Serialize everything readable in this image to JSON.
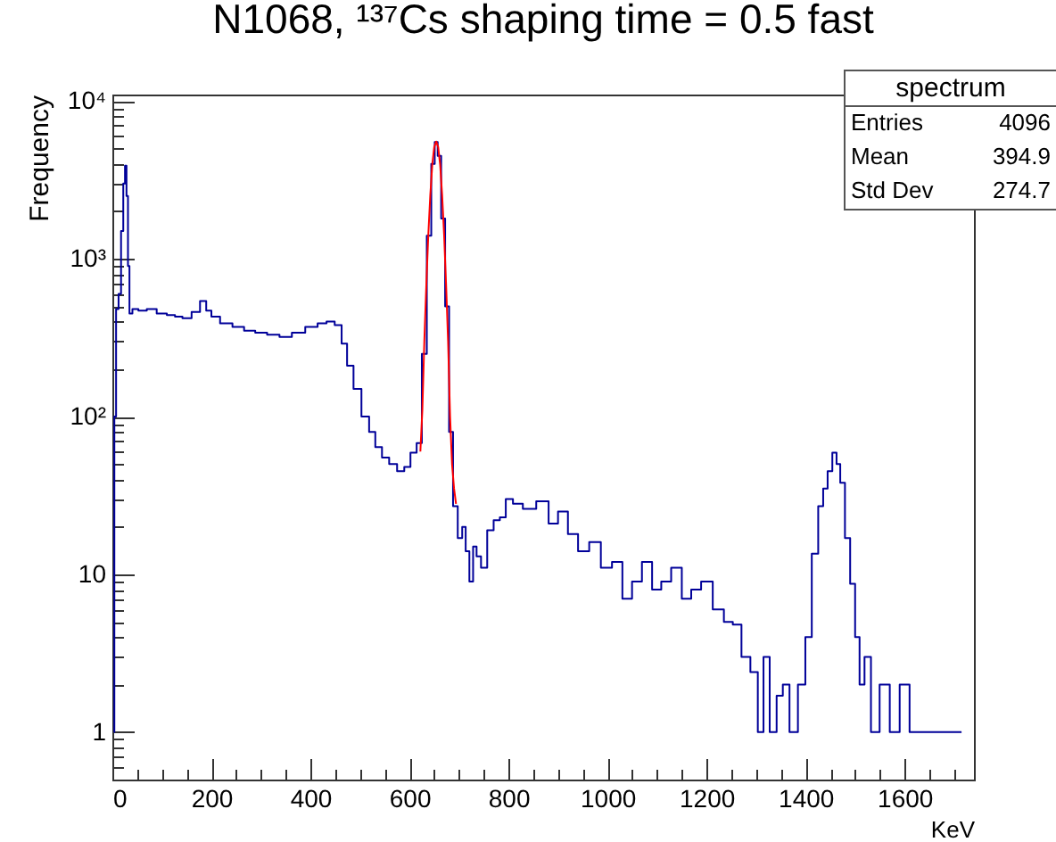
{
  "chart_data": {
    "type": "step",
    "title": "N1068, ¹³⁷Cs shaping time = 0.5 fast",
    "xlabel": "KeV",
    "ylabel": "Frequency",
    "log": "y",
    "grid": false,
    "xlim": [
      0,
      1740
    ],
    "ylim": [
      0.5,
      11000
    ],
    "xticks": [
      0,
      {
        "value": 50,
        "label": null
      },
      {
        "value": 100,
        "label": null
      },
      {
        "value": 150,
        "label": null
      },
      200,
      {
        "value": 250,
        "label": null
      },
      {
        "value": 300,
        "label": null
      },
      {
        "value": 350,
        "label": null
      },
      400,
      {
        "value": 450,
        "label": null
      },
      {
        "value": 500,
        "label": null
      },
      {
        "value": 550,
        "label": null
      },
      600,
      {
        "value": 650,
        "label": null
      },
      {
        "value": 700,
        "label": null
      },
      {
        "value": 750,
        "label": null
      },
      800,
      {
        "value": 850,
        "label": null
      },
      {
        "value": 900,
        "label": null
      },
      {
        "value": 950,
        "label": null
      },
      1000,
      {
        "value": 1050,
        "label": null
      },
      {
        "value": 1100,
        "label": null
      },
      {
        "value": 1150,
        "label": null
      },
      1200,
      {
        "value": 1250,
        "label": null
      },
      {
        "value": 1300,
        "label": null
      },
      {
        "value": 1350,
        "label": null
      },
      1400,
      {
        "value": 1450,
        "label": null
      },
      {
        "value": 1500,
        "label": null
      },
      {
        "value": 1550,
        "label": null
      },
      1600,
      {
        "value": 1650,
        "label": null
      },
      {
        "value": 1700,
        "label": null
      }
    ],
    "yticks": [
      {
        "value": 0.6,
        "label": null
      },
      {
        "value": 0.7,
        "label": null
      },
      {
        "value": 0.8,
        "label": null
      },
      {
        "value": 0.9,
        "label": null
      },
      1,
      {
        "value": 2,
        "label": null
      },
      {
        "value": 3,
        "label": null
      },
      {
        "value": 4,
        "label": null
      },
      {
        "value": 5,
        "label": null
      },
      {
        "value": 6,
        "label": null
      },
      {
        "value": 7,
        "label": null
      },
      {
        "value": 8,
        "label": null
      },
      {
        "value": 9,
        "label": null
      },
      10,
      {
        "value": 20,
        "label": null
      },
      {
        "value": 30,
        "label": null
      },
      {
        "value": 40,
        "label": null
      },
      {
        "value": 50,
        "label": null
      },
      {
        "value": 60,
        "label": null
      },
      {
        "value": 70,
        "label": null
      },
      {
        "value": 80,
        "label": null
      },
      {
        "value": 90,
        "label": null
      },
      {
        "value": 100,
        "label": "10²"
      },
      {
        "value": 200,
        "label": null
      },
      {
        "value": 300,
        "label": null
      },
      {
        "value": 400,
        "label": null
      },
      {
        "value": 500,
        "label": null
      },
      {
        "value": 600,
        "label": null
      },
      {
        "value": 700,
        "label": null
      },
      {
        "value": 800,
        "label": null
      },
      {
        "value": 900,
        "label": null
      },
      {
        "value": 1000,
        "label": "10³"
      },
      {
        "value": 2000,
        "label": null
      },
      {
        "value": 3000,
        "label": null
      },
      {
        "value": 4000,
        "label": null
      },
      {
        "value": 5000,
        "label": null
      },
      {
        "value": 6000,
        "label": null
      },
      {
        "value": 7000,
        "label": null
      },
      {
        "value": 8000,
        "label": null
      },
      {
        "value": 9000,
        "label": null
      },
      {
        "value": 10000,
        "label": "10⁴"
      }
    ],
    "annotations": [
      "spectrum",
      "Entries",
      "4096",
      "Mean",
      "394.9",
      "Std Dev",
      "274.7"
    ],
    "series": [
      {
        "color": "#000099",
        "x": [
          3,
          5,
          10,
          15,
          20,
          24,
          27,
          30,
          33,
          36,
          45,
          60,
          79,
          100,
          120,
          133,
          150,
          170,
          184,
          195,
          205,
          230,
          255,
          277,
          300,
          325,
          350,
          375,
          404,
          425,
          440,
          458,
          468,
          480,
          494,
          512,
          525,
          537,
          552,
          566,
          584,
          595,
          609,
          620,
          630,
          640,
          648,
          654,
          660,
          668,
          676,
          684,
          692,
          703,
          710,
          717,
          725,
          732,
          739,
          750,
          764,
          776,
          789,
          800,
          818,
          840,
          872,
          890,
          910,
          930,
          951,
          975,
          998,
          1020,
          1040,
          1059,
          1080,
          1100,
          1117,
          1140,
          1160,
          1178,
          1200,
          1225,
          1245,
          1261,
          1280,
          1297,
          1310,
          1320,
          1335,
          1348,
          1360,
          1375,
          1394,
          1405,
          1420,
          1431,
          1440,
          1449,
          1459,
          1466,
          1474,
          1485,
          1495,
          1505,
          1513,
          1525,
          1539,
          1560,
          1580,
          1600,
          1620,
          1640,
          1660,
          1680,
          1700,
          1715
        ],
        "values": [
          1,
          100,
          480,
          600,
          1500,
          3000,
          3900,
          2500,
          900,
          450,
          480,
          470,
          480,
          450,
          440,
          430,
          420,
          460,
          540,
          470,
          430,
          390,
          370,
          350,
          340,
          330,
          320,
          340,
          370,
          390,
          400,
          380,
          290,
          210,
          150,
          100,
          80,
          64,
          55,
          50,
          45,
          48,
          59,
          68,
          250,
          1400,
          4000,
          5500,
          4500,
          1800,
          500,
          80,
          27,
          17,
          20,
          14,
          9,
          15,
          13,
          11,
          19,
          22,
          23,
          30,
          28,
          26,
          29,
          21,
          25,
          18,
          14,
          16,
          11,
          12,
          7,
          9,
          12,
          8,
          9,
          11,
          7,
          8,
          9,
          6,
          5,
          4.8,
          3,
          2.4,
          1,
          3,
          1,
          1.7,
          2,
          1,
          2,
          4,
          13.5,
          27,
          35,
          45,
          59,
          50,
          38,
          17,
          8.7,
          4,
          2,
          3,
          1,
          2,
          1,
          2,
          1,
          1,
          1,
          1,
          1,
          1
        ]
      },
      {
        "type": "line",
        "color": "#ff0000",
        "x": [
          622,
          626,
          630,
          634,
          638,
          642,
          646,
          650,
          654,
          658,
          662,
          666,
          670,
          674,
          678,
          682,
          686,
          690,
          694
        ],
        "values": [
          60,
          110,
          300,
          680,
          1410,
          2520,
          3940,
          5110,
          5540,
          5110,
          3940,
          2520,
          1410,
          680,
          300,
          100,
          50,
          35,
          28
        ]
      }
    ]
  }
}
